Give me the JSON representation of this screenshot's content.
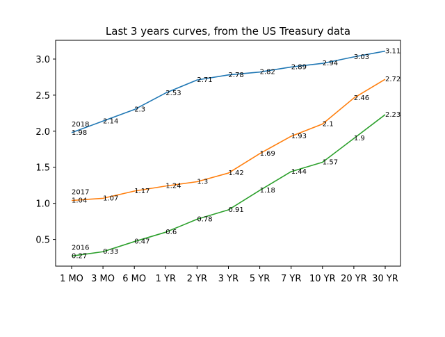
{
  "chart_data": {
    "type": "line",
    "title": "Last 3 years curves, from the US Treasury data",
    "xlabel": "",
    "ylabel": "",
    "categories": [
      "1 MO",
      "3 MO",
      "6 MO",
      "1 YR",
      "2 YR",
      "3 YR",
      "5 YR",
      "7 YR",
      "10 YR",
      "20 YR",
      "30 YR"
    ],
    "ylim": [
      0.13,
      3.26
    ],
    "yticks": [
      0.5,
      1.0,
      1.5,
      2.0,
      2.5,
      3.0
    ],
    "ytick_labels": [
      "0.5",
      "1.0",
      "1.5",
      "2.0",
      "2.5",
      "3.0"
    ],
    "grid": false,
    "legend": "none",
    "series": [
      {
        "year_label": "2018",
        "color": "#1f77b4",
        "values": [
          1.98,
          2.14,
          2.3,
          2.53,
          2.71,
          2.78,
          2.82,
          2.89,
          2.94,
          3.03,
          3.11
        ],
        "labels": [
          "1.98",
          "2.14",
          "2.3",
          "2.53",
          "2.71",
          "2.78",
          "2.82",
          "2.89",
          "2.94",
          "3.03",
          "3.11"
        ]
      },
      {
        "year_label": "2017",
        "color": "#ff7f0e",
        "values": [
          1.04,
          1.07,
          1.17,
          1.24,
          1.3,
          1.42,
          1.69,
          1.93,
          2.1,
          2.46,
          2.72
        ],
        "labels": [
          "1.04",
          "1.07",
          "1.17",
          "1.24",
          "1.3",
          "1.42",
          "1.69",
          "1.93",
          "2.1",
          "2.46",
          "2.72"
        ]
      },
      {
        "year_label": "2016",
        "color": "#2ca02c",
        "values": [
          0.27,
          0.33,
          0.47,
          0.6,
          0.78,
          0.91,
          1.18,
          1.44,
          1.57,
          1.9,
          2.23
        ],
        "labels": [
          "0.27",
          "0.33",
          "0.47",
          "0.6",
          "0.78",
          "0.91",
          "1.18",
          "1.44",
          "1.57",
          "1.9",
          "2.23"
        ]
      }
    ]
  }
}
